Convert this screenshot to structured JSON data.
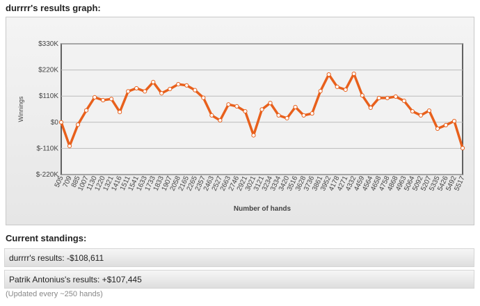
{
  "heading": "durrrr's results graph:",
  "chart_data": {
    "type": "line",
    "xlabel": "Number of hands",
    "ylabel": "Winnings",
    "categories": [
      "505",
      "709",
      "885",
      "1007",
      "1130",
      "1220",
      "1321",
      "1416",
      "1511",
      "1541",
      "1633",
      "1733",
      "1833",
      "1907",
      "2058",
      "2165",
      "2265",
      "2357",
      "2463",
      "2527",
      "2663",
      "2746",
      "2921",
      "3021",
      "3121",
      "3234",
      "3334",
      "3420",
      "3516",
      "3628",
      "3736",
      "3861",
      "3952",
      "4178",
      "4271",
      "4332",
      "4459",
      "4564",
      "4658",
      "4758",
      "4868",
      "4963",
      "5064",
      "5092",
      "5207",
      "5335",
      "5426",
      "5492",
      "5517"
    ],
    "values": [
      0,
      -100000,
      -10000,
      50000,
      105000,
      93000,
      98000,
      43000,
      130000,
      143000,
      130000,
      169000,
      122000,
      140000,
      160000,
      155000,
      135000,
      103000,
      29000,
      8000,
      75000,
      67000,
      46000,
      -55000,
      54000,
      81000,
      29000,
      17000,
      64000,
      29000,
      37000,
      131000,
      201000,
      149000,
      137000,
      204000,
      113000,
      61000,
      102000,
      102000,
      108000,
      90000,
      46000,
      29000,
      49000,
      -27000,
      -12000,
      5000,
      -108611
    ],
    "color": "#e8601c",
    "ylim": [
      -220000,
      330000
    ],
    "yticks": [
      {
        "value": -220000,
        "label": "$-220K"
      },
      {
        "value": -110000,
        "label": "$-110K"
      },
      {
        "value": 0,
        "label": "$0"
      },
      {
        "value": 110000,
        "label": "$110K"
      },
      {
        "value": 220000,
        "label": "$220K"
      },
      {
        "value": 330000,
        "label": "$330K"
      }
    ],
    "grid": true
  },
  "standings": {
    "title": "Current standings:",
    "rows": [
      "durrrr's results: -$108,611",
      "Patrik Antonius's results: +$107,445"
    ],
    "note": "(Updated every ~250 hands)"
  }
}
